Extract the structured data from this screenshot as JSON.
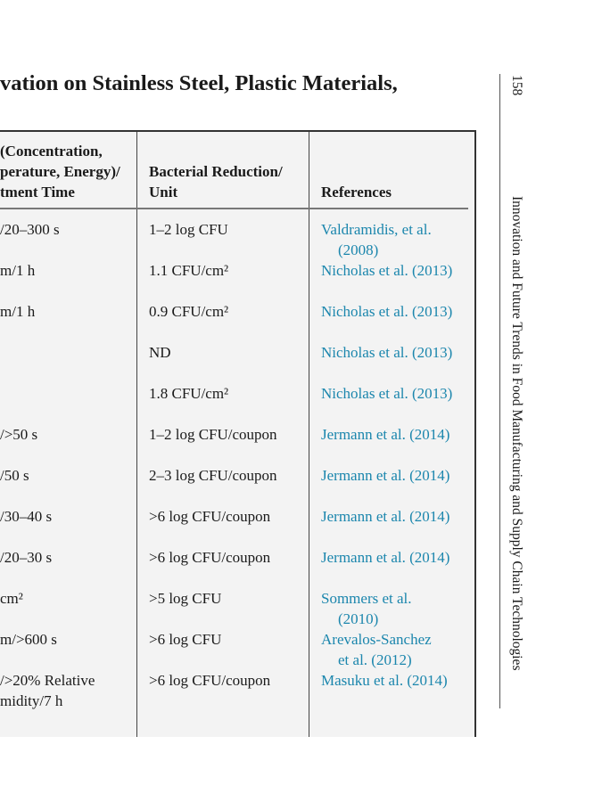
{
  "title": "vation on Stainless Steel, Plastic Materials,",
  "headers": {
    "conditions": [
      "(Concentration,",
      "perature, Energy)/",
      "tment Time"
    ],
    "reduction": [
      "Bacterial Reduction/",
      "Unit"
    ],
    "references": [
      "References"
    ]
  },
  "rows": [
    {
      "conditions": [
        "/20–300 s"
      ],
      "reduction": "1–2 log CFU",
      "reference": [
        "Valdramidis, et al.",
        "(2008)"
      ]
    },
    {
      "conditions": [
        "m/1 h"
      ],
      "reduction": "1.1 CFU/cm²",
      "reference": [
        "Nicholas et al. (2013)"
      ]
    },
    {
      "conditions": [
        "m/1 h"
      ],
      "reduction": "0.9 CFU/cm²",
      "reference": [
        "Nicholas et al. (2013)"
      ]
    },
    {
      "conditions": [
        ""
      ],
      "reduction": "ND",
      "reference": [
        "Nicholas et al. (2013)"
      ]
    },
    {
      "conditions": [
        ""
      ],
      "reduction": "1.8 CFU/cm²",
      "reference": [
        "Nicholas et al. (2013)"
      ]
    },
    {
      "conditions": [
        "/>50 s"
      ],
      "reduction": "1–2 log CFU/coupon",
      "reference": [
        "Jermann et al. (2014)"
      ]
    },
    {
      "conditions": [
        "/50 s"
      ],
      "reduction": "2–3 log CFU/coupon",
      "reference": [
        "Jermann et al. (2014)"
      ]
    },
    {
      "conditions": [
        "/30–40 s"
      ],
      "reduction": ">6 log CFU/coupon",
      "reference": [
        "Jermann et al. (2014)"
      ]
    },
    {
      "conditions": [
        "/20–30 s"
      ],
      "reduction": ">6 log CFU/coupon",
      "reference": [
        "Jermann et al. (2014)"
      ]
    },
    {
      "conditions": [
        "cm²"
      ],
      "reduction": ">5 log CFU",
      "reference": [
        "Sommers et al.",
        "(2010)"
      ]
    },
    {
      "conditions": [
        "m/>600 s"
      ],
      "reduction": ">6 log CFU",
      "reference": [
        "Arevalos-Sanchez",
        "et al. (2012)"
      ]
    },
    {
      "conditions": [
        "/>20% Relative",
        "midity/7 h"
      ],
      "reduction": ">6 log CFU/coupon",
      "reference": [
        "Masuku et al. (2014)"
      ]
    }
  ],
  "running_head": {
    "page_number": "158",
    "book_title": "Innovation and Future Trends in Food Manufacturing and Supply Chain Technologies"
  },
  "colors": {
    "link": "#1b86ad",
    "table_bg": "#f3f3f3"
  }
}
